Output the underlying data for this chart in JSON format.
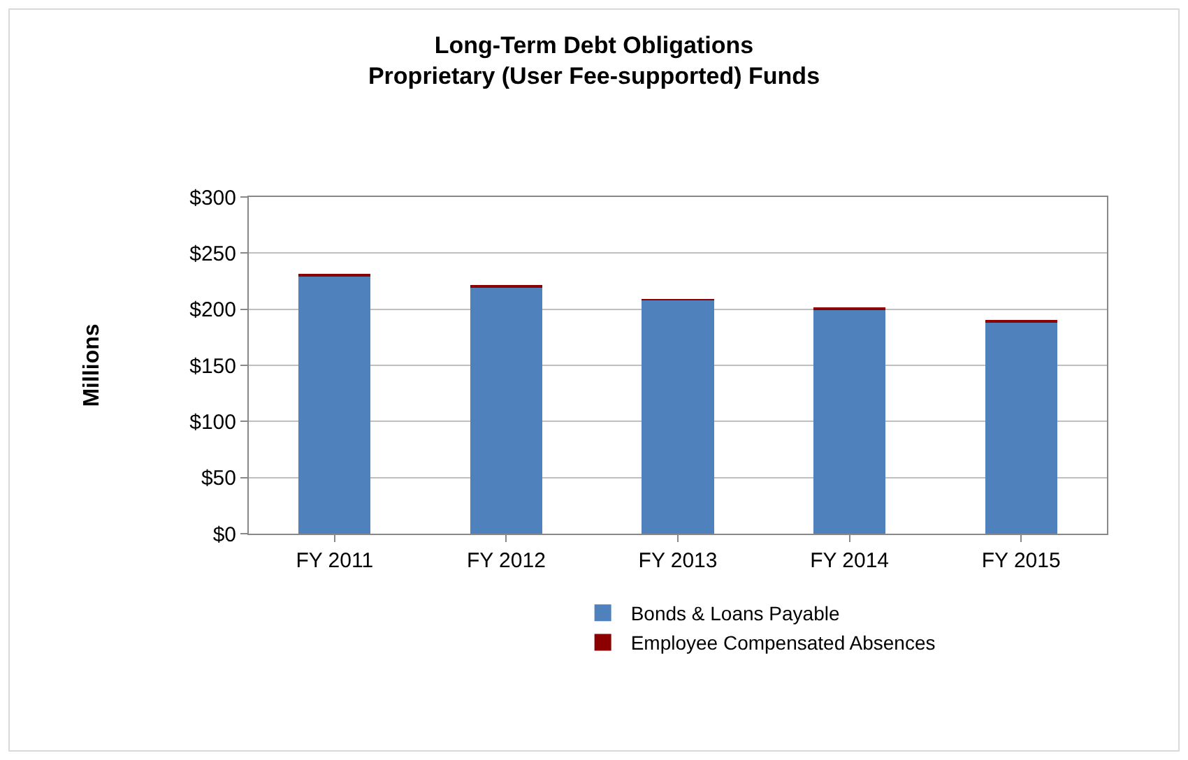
{
  "chart_data": {
    "type": "bar",
    "title": "Long-Term Debt Obligations\nProprietary (User Fee-supported) Funds",
    "ylabel": "Millions",
    "categories": [
      "FY 2011",
      "FY 2012",
      "FY 2013",
      "FY 2014",
      "FY 2015"
    ],
    "series": [
      {
        "name": "Bonds & Loans Payable",
        "color": "#4f81bd",
        "values": [
          230,
          220,
          208,
          200,
          189
        ]
      },
      {
        "name": "Employee Compensated Absences",
        "color": "#8b0000",
        "values": [
          1,
          1,
          1,
          1,
          1
        ]
      }
    ],
    "stacked": true,
    "ylim": [
      0,
      300
    ],
    "yticks": [
      {
        "value": 0,
        "label": "$0"
      },
      {
        "value": 50,
        "label": "$50"
      },
      {
        "value": 100,
        "label": "$100"
      },
      {
        "value": 150,
        "label": "$150"
      },
      {
        "value": 200,
        "label": "$200"
      },
      {
        "value": 250,
        "label": "$250"
      },
      {
        "value": 300,
        "label": "$300"
      }
    ],
    "grid": "y",
    "legend": "bottom"
  }
}
